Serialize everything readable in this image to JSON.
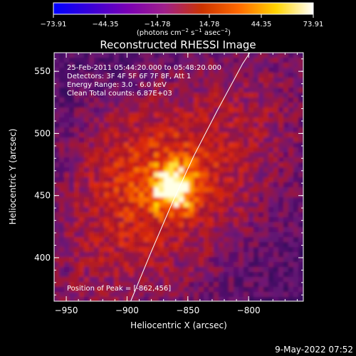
{
  "chart_data": {
    "type": "heatmap",
    "title": "Reconstructed RHESSI Image",
    "xlabel": "Heliocentric X (arcsec)",
    "ylabel": "Heliocentric Y (arcsec)",
    "xlim": [
      -960,
      -755
    ],
    "ylim": [
      365,
      565
    ],
    "x_ticks": [
      {
        "value": -950,
        "label": "−950"
      },
      {
        "value": -900,
        "label": "−900"
      },
      {
        "value": -850,
        "label": "−850"
      },
      {
        "value": -800,
        "label": "−800"
      }
    ],
    "y_ticks": [
      {
        "value": 400,
        "label": "400"
      },
      {
        "value": 450,
        "label": "450"
      },
      {
        "value": 500,
        "label": "500"
      },
      {
        "value": 550,
        "label": "550"
      }
    ],
    "colorbar": {
      "min": -73.91,
      "max": 73.91,
      "ticks": [
        {
          "value": -73.91,
          "label": "−73.91"
        },
        {
          "value": -44.35,
          "label": "−44.35"
        },
        {
          "value": -14.78,
          "label": "−14.78"
        },
        {
          "value": 14.78,
          "label": "14.78"
        },
        {
          "value": 44.35,
          "label": "44.35"
        },
        {
          "value": 73.91,
          "label": "73.91"
        }
      ],
      "unit_main": "(photons cm",
      "unit_exp1": "−2",
      "unit_mid": " s",
      "unit_exp2": "−1",
      "unit_mid2": " asec",
      "unit_exp3": "−2",
      "unit_end": ")",
      "colors": [
        "#0000ff",
        "#3a00d8",
        "#7a00b4",
        "#a0208a",
        "#cc3300",
        "#ff6a00",
        "#ffd400",
        "#ffffff"
      ]
    },
    "info_lines": [
      "25-Feb-2011 05:44:20.000 to 05:48:20.000",
      "Detectors: 3F 4F 5F 6F 7F 8F, Att 1",
      "Energy Range: 3.0 - 6.0 keV",
      "Clean      Total counts: 6.87E+03"
    ],
    "peak_label": "Position of Peak = [-862,456]",
    "peak": {
      "x": -862,
      "y": 456
    },
    "limb_curve": [
      {
        "x": -897,
        "y": 365
      },
      {
        "x": -880,
        "y": 405
      },
      {
        "x": -862,
        "y": 446
      },
      {
        "x": -845,
        "y": 482
      },
      {
        "x": -826,
        "y": 518
      },
      {
        "x": -805,
        "y": 556
      },
      {
        "x": -799,
        "y": 565
      }
    ]
  },
  "footer": {
    "date": "9-May-2022 07:52"
  }
}
